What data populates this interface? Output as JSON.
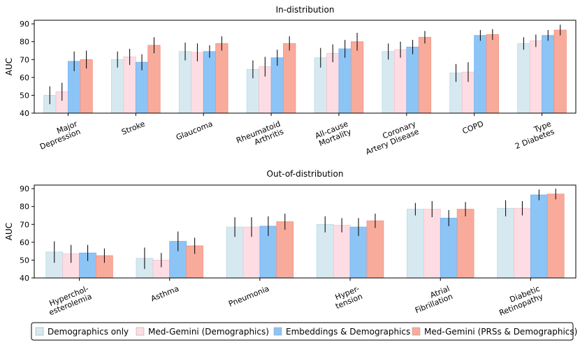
{
  "chart_data": [
    {
      "type": "bar",
      "title": "In-distribution",
      "ylabel": "AUC",
      "xlabel": "",
      "ylim": [
        40,
        92
      ],
      "yticks": [
        40,
        50,
        60,
        70,
        80,
        90
      ],
      "categories": [
        "Major\nDepression",
        "Stroke",
        "Glaucoma",
        "Rheumatoid\nArthritis",
        "All-cause\nMortality",
        "Coronary\nArtery Disease",
        "COPD",
        "Type\n2 Diabetes"
      ],
      "series": [
        {
          "name": "Demographics only",
          "color": "#d6e9f0",
          "edge": "#b9d9e6",
          "values": [
            50,
            70,
            74.5,
            64.5,
            71,
            74.5,
            62.5,
            79
          ],
          "err": [
            5,
            4.5,
            5,
            5,
            5.5,
            4.5,
            5,
            3.5
          ]
        },
        {
          "name": "Med-Gemini (Demographics)",
          "color": "#fddde3",
          "edge": "#f6c2cc",
          "values": [
            52,
            71.5,
            74,
            66,
            73.5,
            75.5,
            63,
            80.5
          ],
          "err": [
            5,
            4.5,
            5,
            5.5,
            5,
            4.5,
            5.5,
            3.5
          ]
        },
        {
          "name": "Embeddings & Demographics",
          "color": "#8dc4f6",
          "edge": "#6fb2ef",
          "values": [
            69,
            68.5,
            74.5,
            71,
            76,
            77,
            83.5,
            83.5
          ],
          "err": [
            5.5,
            4.5,
            3.5,
            4.5,
            5,
            4,
            3,
            3
          ]
        },
        {
          "name": "Med-Gemini (PRSs & Demographics)",
          "color": "#f9ab9b",
          "edge": "#f19383",
          "values": [
            70,
            78,
            79,
            79,
            80,
            82.5,
            84,
            86.5
          ],
          "err": [
            5,
            4.5,
            4,
            4,
            5,
            3.5,
            3,
            3
          ]
        }
      ]
    },
    {
      "type": "bar",
      "title": "Out-of-distribution",
      "ylabel": "AUC",
      "xlabel": "",
      "ylim": [
        40,
        92
      ],
      "yticks": [
        40,
        50,
        60,
        70,
        80,
        90
      ],
      "categories": [
        "Hyperchol-\nesterolemia",
        "Asthma",
        "Pneumonia",
        "Hyper-\ntension",
        "Atrial\nFibrillation",
        "Diabetic\nRetinopathy"
      ],
      "series": [
        {
          "name": "Demographics only",
          "color": "#d6e9f0",
          "edge": "#b9d9e6",
          "values": [
            54.5,
            51,
            68.5,
            70,
            78.5,
            79
          ],
          "err": [
            6,
            6,
            5.5,
            4.5,
            3.5,
            4.5
          ]
        },
        {
          "name": "Med-Gemini (Demographics)",
          "color": "#fddde3",
          "edge": "#f6c2cc",
          "values": [
            53.5,
            50,
            68.5,
            69.5,
            78.5,
            79
          ],
          "err": [
            5,
            4,
            5.5,
            4,
            4.5,
            4
          ]
        },
        {
          "name": "Embeddings & Demographics",
          "color": "#8dc4f6",
          "edge": "#6fb2ef",
          "values": [
            54,
            60.5,
            69,
            68.5,
            73.5,
            86.5
          ],
          "err": [
            4.5,
            5.5,
            5.5,
            5,
            4.5,
            3
          ]
        },
        {
          "name": "Med-Gemini (PRSs & Demographics)",
          "color": "#f9ab9b",
          "edge": "#f19383",
          "values": [
            52.5,
            58,
            71.5,
            72,
            78.5,
            87
          ],
          "err": [
            4,
            4.5,
            4.5,
            4,
            4,
            3
          ]
        }
      ]
    }
  ],
  "legend": {
    "position": "bottom",
    "items": [
      {
        "label": "Demographics only",
        "color": "#d6e9f0"
      },
      {
        "label": "Med-Gemini (Demographics)",
        "color": "#fddde3"
      },
      {
        "label": "Embeddings & Demographics",
        "color": "#8dc4f6"
      },
      {
        "label": "Med-Gemini (PRSs & Demographics)",
        "color": "#f9ab9b"
      }
    ]
  }
}
